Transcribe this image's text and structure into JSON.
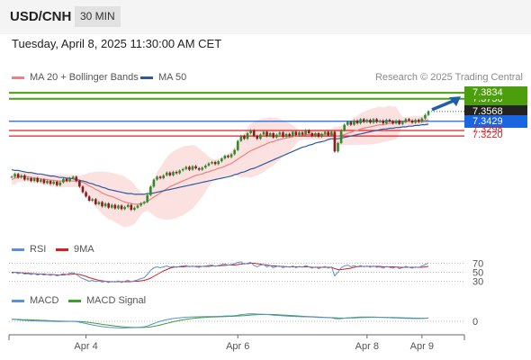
{
  "header": {
    "symbol": "USD/CNH",
    "timeframe": "30 MIN"
  },
  "datetime": "Tuesday, April 8, 2025 11:30:00 AM CET",
  "legend": {
    "ma20": {
      "label": "MA 20 + Bollinger Bands",
      "color": "#f08080"
    },
    "ma50": {
      "label": "MA 50",
      "color": "#2c5aa0"
    },
    "rsi": {
      "label": "RSI",
      "color": "#5b8fd6"
    },
    "rsi_ma": {
      "label": "9MA",
      "color": "#d42020"
    },
    "macd": {
      "label": "MACD",
      "color": "#5b8fd6"
    },
    "macd_signal": {
      "label": "MACD Signal",
      "color": "#3aa02a"
    }
  },
  "credit": "Research © 2025 Trading Central",
  "chart_data": {
    "type": "candlestick",
    "x_ticks": [
      "Apr 4",
      "Apr 6",
      "Apr 8",
      "Apr 9"
    ],
    "price_ylim": [
      7.18,
      7.39
    ],
    "levels": [
      {
        "label": "7.3834",
        "value": 7.3834,
        "kind": "target",
        "color": "#4d9e0c"
      },
      {
        "label": "7.3750",
        "value": 7.375,
        "kind": "resistance",
        "color": "#4d9e0c"
      },
      {
        "label": "7.3568",
        "value": 7.3568,
        "kind": "last",
        "color": "#222222"
      },
      {
        "label": "7.3429",
        "value": 7.3429,
        "kind": "pivot",
        "color": "#1a66e0"
      },
      {
        "label": "7.3298",
        "value": 7.3298,
        "kind": "support",
        "color": "#e02020"
      },
      {
        "label": "7.3220",
        "value": 7.322,
        "kind": "support",
        "color": "#e02020"
      }
    ],
    "close": [
      7.264,
      7.268,
      7.263,
      7.266,
      7.26,
      7.262,
      7.258,
      7.262,
      7.257,
      7.26,
      7.255,
      7.258,
      7.254,
      7.257,
      7.252,
      7.256,
      7.261,
      7.258,
      7.262,
      7.264,
      7.258,
      7.25,
      7.242,
      7.236,
      7.23,
      7.232,
      7.225,
      7.228,
      7.222,
      7.226,
      7.22,
      7.224,
      7.219,
      7.223,
      7.218,
      7.221,
      7.224,
      7.217,
      7.22,
      7.223,
      7.226,
      7.228,
      7.238,
      7.25,
      7.26,
      7.264,
      7.262,
      7.266,
      7.27,
      7.266,
      7.271,
      7.269,
      7.273,
      7.275,
      7.278,
      7.274,
      7.279,
      7.276,
      7.274,
      7.277,
      7.28,
      7.283,
      7.285,
      7.282,
      7.286,
      7.29,
      7.294,
      7.292,
      7.296,
      7.302,
      7.315,
      7.322,
      7.318,
      7.326,
      7.33,
      7.322,
      7.318,
      7.324,
      7.328,
      7.322,
      7.326,
      7.32,
      7.324,
      7.327,
      7.321,
      7.325,
      7.322,
      7.328,
      7.323,
      7.327,
      7.324,
      7.33,
      7.326,
      7.322,
      7.326,
      7.321,
      7.325,
      7.328,
      7.323,
      7.328,
      7.3,
      7.312,
      7.33,
      7.338,
      7.342,
      7.338,
      7.344,
      7.34,
      7.346,
      7.342,
      7.345,
      7.341,
      7.346,
      7.342,
      7.344,
      7.34,
      7.345,
      7.343,
      7.34,
      7.344,
      7.339,
      7.342,
      7.346,
      7.344,
      7.341,
      7.345,
      7.342,
      7.347,
      7.352,
      7.357
    ],
    "ma20": [
      7.26,
      7.262,
      7.263,
      7.264,
      7.264,
      7.264,
      7.263,
      7.262,
      7.262,
      7.261,
      7.26,
      7.26,
      7.259,
      7.259,
      7.258,
      7.258,
      7.258,
      7.258,
      7.258,
      7.258,
      7.258,
      7.257,
      7.256,
      7.254,
      7.251,
      7.249,
      7.246,
      7.244,
      7.241,
      7.239,
      7.237,
      7.236,
      7.234,
      7.232,
      7.23,
      7.228,
      7.227,
      7.226,
      7.225,
      7.225,
      7.226,
      7.227,
      7.229,
      7.232,
      7.235,
      7.238,
      7.241,
      7.244,
      7.247,
      7.25,
      7.252,
      7.254,
      7.256,
      7.258,
      7.26,
      7.262,
      7.264,
      7.266,
      7.267,
      7.268,
      7.27,
      7.271,
      7.273,
      7.274,
      7.276,
      7.277,
      7.279,
      7.281,
      7.283,
      7.286,
      7.289,
      7.292,
      7.295,
      7.298,
      7.301,
      7.303,
      7.305,
      7.307,
      7.309,
      7.311,
      7.313,
      7.314,
      7.316,
      7.317,
      7.318,
      7.319,
      7.32,
      7.321,
      7.322,
      7.323,
      7.323,
      7.324,
      7.324,
      7.324,
      7.324,
      7.324,
      7.324,
      7.324,
      7.325,
      7.325,
      7.323,
      7.322,
      7.323,
      7.324,
      7.326,
      7.327,
      7.329,
      7.33,
      7.332,
      7.333,
      7.334,
      7.335,
      7.336,
      7.337,
      7.338,
      7.338,
      7.339,
      7.34,
      7.34,
      7.341,
      7.341,
      7.342,
      7.342,
      7.343,
      7.343,
      7.343,
      7.343,
      7.344,
      7.344,
      7.345
    ],
    "ma50": [
      7.274,
      7.273,
      7.273,
      7.272,
      7.271,
      7.27,
      7.27,
      7.269,
      7.268,
      7.268,
      7.267,
      7.266,
      7.265,
      7.265,
      7.264,
      7.263,
      7.263,
      7.262,
      7.262,
      7.261,
      7.26,
      7.259,
      7.258,
      7.257,
      7.255,
      7.254,
      7.252,
      7.251,
      7.249,
      7.248,
      7.246,
      7.245,
      7.244,
      7.243,
      7.242,
      7.241,
      7.24,
      7.24,
      7.239,
      7.239,
      7.239,
      7.239,
      7.24,
      7.24,
      7.241,
      7.242,
      7.243,
      7.244,
      7.245,
      7.246,
      7.247,
      7.248,
      7.249,
      7.25,
      7.251,
      7.252,
      7.253,
      7.254,
      7.255,
      7.256,
      7.257,
      7.258,
      7.259,
      7.26,
      7.261,
      7.262,
      7.263,
      7.264,
      7.265,
      7.267,
      7.268,
      7.27,
      7.271,
      7.273,
      7.275,
      7.276,
      7.278,
      7.28,
      7.282,
      7.284,
      7.286,
      7.288,
      7.29,
      7.292,
      7.294,
      7.296,
      7.298,
      7.3,
      7.302,
      7.304,
      7.306,
      7.307,
      7.309,
      7.31,
      7.312,
      7.313,
      7.314,
      7.315,
      7.317,
      7.318,
      7.318,
      7.318,
      7.319,
      7.32,
      7.321,
      7.322,
      7.323,
      7.324,
      7.325,
      7.326,
      7.327,
      7.328,
      7.329,
      7.33,
      7.331,
      7.332,
      7.332,
      7.333,
      7.333,
      7.334,
      7.334,
      7.335,
      7.335,
      7.336,
      7.336,
      7.337,
      7.337,
      7.338,
      7.338,
      7.339
    ],
    "rsi_ticks": [
      70,
      50,
      30
    ],
    "rsi_ylim": [
      25,
      75
    ],
    "rsi": [
      48,
      50,
      47,
      49,
      46,
      47,
      45,
      47,
      44,
      46,
      44,
      45,
      43,
      45,
      42,
      44,
      47,
      45,
      48,
      49,
      45,
      40,
      36,
      33,
      30,
      32,
      29,
      31,
      28,
      30,
      27,
      30,
      28,
      31,
      27,
      30,
      32,
      29,
      31,
      33,
      36,
      38,
      45,
      54,
      60,
      62,
      60,
      62,
      64,
      61,
      63,
      61,
      63,
      64,
      65,
      62,
      64,
      62,
      61,
      63,
      64,
      65,
      66,
      63,
      65,
      67,
      68,
      66,
      67,
      69,
      72,
      73,
      68,
      70,
      72,
      65,
      62,
      66,
      67,
      62,
      65,
      60,
      63,
      64,
      60,
      63,
      61,
      64,
      60,
      63,
      61,
      65,
      62,
      59,
      62,
      58,
      61,
      63,
      59,
      62,
      42,
      50,
      60,
      64,
      66,
      62,
      65,
      62,
      65,
      62,
      64,
      61,
      64,
      61,
      62,
      59,
      63,
      61,
      59,
      62,
      58,
      60,
      63,
      61,
      59,
      62,
      60,
      64,
      67,
      71
    ],
    "rsi_ma": [
      50,
      50,
      49,
      49,
      48,
      48,
      47,
      47,
      46,
      46,
      46,
      45,
      45,
      45,
      44,
      44,
      44,
      45,
      45,
      46,
      46,
      45,
      43,
      41,
      38,
      36,
      34,
      32,
      31,
      30,
      29,
      29,
      29,
      29,
      29,
      29,
      29,
      29,
      30,
      30,
      31,
      32,
      34,
      37,
      41,
      45,
      49,
      53,
      56,
      59,
      61,
      62,
      62,
      62,
      63,
      63,
      63,
      63,
      63,
      63,
      63,
      63,
      64,
      64,
      64,
      65,
      65,
      66,
      66,
      66,
      67,
      68,
      69,
      69,
      70,
      70,
      69,
      68,
      67,
      66,
      65,
      64,
      64,
      63,
      63,
      62,
      62,
      62,
      62,
      62,
      62,
      62,
      62,
      61,
      61,
      61,
      61,
      61,
      61,
      61,
      58,
      56,
      56,
      57,
      58,
      59,
      61,
      62,
      63,
      63,
      63,
      63,
      63,
      63,
      63,
      62,
      62,
      62,
      62,
      62,
      61,
      61,
      61,
      61,
      61,
      61,
      61,
      61,
      62,
      63
    ],
    "macd_ticks": [
      0
    ],
    "macd_ylim": [
      -0.012,
      0.012
    ],
    "macd": [
      0.002,
      0.002,
      0.0015,
      0.0012,
      0.001,
      0.0008,
      0.0006,
      0.0005,
      0.0004,
      0.0003,
      0.0002,
      0.0001,
      0,
      -0.0001,
      -0.0002,
      -0.0003,
      -0.0002,
      -0.0002,
      -0.0001,
      0,
      -0.0003,
      -0.0009,
      -0.0016,
      -0.0023,
      -0.0031,
      -0.0037,
      -0.0044,
      -0.0049,
      -0.0054,
      -0.0058,
      -0.0062,
      -0.0064,
      -0.0066,
      -0.0067,
      -0.0068,
      -0.0068,
      -0.0066,
      -0.0066,
      -0.0065,
      -0.0063,
      -0.006,
      -0.0056,
      -0.0048,
      -0.0036,
      -0.0023,
      -0.0011,
      0,
      0.0009,
      0.0018,
      0.0023,
      0.0029,
      0.0032,
      0.0036,
      0.0039,
      0.0042,
      0.0043,
      0.0045,
      0.0046,
      0.0046,
      0.0047,
      0.0048,
      0.0049,
      0.005,
      0.005,
      0.0051,
      0.0052,
      0.0054,
      0.0055,
      0.0056,
      0.0058,
      0.0063,
      0.0068,
      0.0071,
      0.0075,
      0.0078,
      0.0077,
      0.0074,
      0.0073,
      0.0072,
      0.0069,
      0.0067,
      0.0063,
      0.0061,
      0.0059,
      0.0056,
      0.0054,
      0.0052,
      0.0051,
      0.0049,
      0.0048,
      0.0046,
      0.0046,
      0.0045,
      0.0043,
      0.0042,
      0.004,
      0.0039,
      0.0039,
      0.0037,
      0.0037,
      0.0028,
      0.0026,
      0.0028,
      0.0032,
      0.0036,
      0.0038,
      0.0041,
      0.0042,
      0.0044,
      0.0044,
      0.0044,
      0.0043,
      0.0043,
      0.0042,
      0.0041,
      0.0039,
      0.0038,
      0.0037,
      0.0035,
      0.0034,
      0.0032,
      0.0031,
      0.003,
      0.003,
      0.0029,
      0.0029,
      0.0028,
      0.0029,
      0.0031,
      0.0034
    ],
    "macd_signal": [
      0.002,
      0.002,
      0.0019,
      0.0018,
      0.0017,
      0.0016,
      0.0015,
      0.0013,
      0.0012,
      0.001,
      0.0009,
      0.0008,
      0.0006,
      0.0005,
      0.0003,
      0.0002,
      0.0001,
      0,
      0,
      -0.0001,
      -0.0001,
      -0.0003,
      -0.0005,
      -0.0008,
      -0.0012,
      -0.0016,
      -0.0021,
      -0.0026,
      -0.0031,
      -0.0036,
      -0.004,
      -0.0044,
      -0.0048,
      -0.0052,
      -0.0055,
      -0.0058,
      -0.006,
      -0.0062,
      -0.0063,
      -0.0064,
      -0.0064,
      -0.0063,
      -0.0061,
      -0.0057,
      -0.0052,
      -0.0045,
      -0.0038,
      -0.0029,
      -0.0021,
      -0.0013,
      -0.0005,
      0.0002,
      0.0009,
      0.0015,
      0.002,
      0.0025,
      0.0029,
      0.0033,
      0.0036,
      0.0038,
      0.004,
      0.0042,
      0.0044,
      0.0045,
      0.0046,
      0.0047,
      0.0048,
      0.005,
      0.0051,
      0.0052,
      0.0054,
      0.0056,
      0.0058,
      0.0061,
      0.0064,
      0.0066,
      0.0068,
      0.0069,
      0.007,
      0.007,
      0.007,
      0.0069,
      0.0068,
      0.0066,
      0.0064,
      0.0062,
      0.006,
      0.0058,
      0.0056,
      0.0054,
      0.0052,
      0.005,
      0.0048,
      0.0047,
      0.0045,
      0.0043,
      0.0042,
      0.004,
      0.0039,
      0.0038,
      0.0036,
      0.0034,
      0.0033,
      0.0032,
      0.0033,
      0.0034,
      0.0035,
      0.0037,
      0.0038,
      0.0039,
      0.004,
      0.0041,
      0.0041,
      0.0041,
      0.0041,
      0.0041,
      0.0041,
      0.004,
      0.0039,
      0.0038,
      0.0037,
      0.0036,
      0.0035,
      0.0034,
      0.0033,
      0.0032,
      0.0031,
      0.0031,
      0.0031,
      0.0032
    ]
  }
}
